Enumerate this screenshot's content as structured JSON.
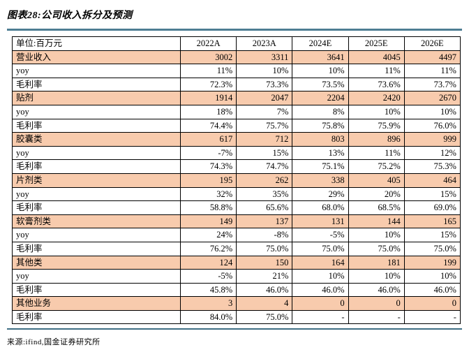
{
  "page": {
    "title": "图表28:公司收入拆分及预测",
    "source": "来源:ifind,国金证券研究所"
  },
  "table": {
    "unit_label": "单位:百万元",
    "columns": [
      "2022A",
      "2023A",
      "2024E",
      "2025E",
      "2026E"
    ],
    "rows": [
      {
        "label": "营业收入",
        "highlight": true,
        "values": [
          "3002",
          "3311",
          "3641",
          "4045",
          "4497"
        ]
      },
      {
        "label": "yoy",
        "highlight": false,
        "values": [
          "11%",
          "10%",
          "10%",
          "11%",
          "11%"
        ]
      },
      {
        "label": "毛利率",
        "highlight": false,
        "values": [
          "72.3%",
          "73.3%",
          "73.5%",
          "73.6%",
          "73.7%"
        ]
      },
      {
        "label": "贴剂",
        "highlight": true,
        "values": [
          "1914",
          "2047",
          "2204",
          "2420",
          "2670"
        ]
      },
      {
        "label": "yoy",
        "highlight": false,
        "values": [
          "18%",
          "7%",
          "8%",
          "10%",
          "10%"
        ]
      },
      {
        "label": "毛利率",
        "highlight": false,
        "values": [
          "74.4%",
          "75.7%",
          "75.8%",
          "75.9%",
          "76.0%"
        ]
      },
      {
        "label": "胶囊类",
        "highlight": true,
        "values": [
          "617",
          "712",
          "803",
          "896",
          "999"
        ]
      },
      {
        "label": "yoy",
        "highlight": false,
        "values": [
          "-7%",
          "15%",
          "13%",
          "11%",
          "12%"
        ]
      },
      {
        "label": "毛利率",
        "highlight": false,
        "values": [
          "74.3%",
          "74.7%",
          "75.1%",
          "75.2%",
          "75.3%"
        ]
      },
      {
        "label": "片剂类",
        "highlight": true,
        "values": [
          "195",
          "262",
          "338",
          "405",
          "464"
        ]
      },
      {
        "label": "yoy",
        "highlight": false,
        "values": [
          "32%",
          "35%",
          "29%",
          "20%",
          "15%"
        ]
      },
      {
        "label": "毛利率",
        "highlight": false,
        "values": [
          "58.8%",
          "65.6%",
          "68.0%",
          "68.5%",
          "69.0%"
        ]
      },
      {
        "label": "软膏剂类",
        "highlight": true,
        "values": [
          "149",
          "137",
          "131",
          "144",
          "165"
        ]
      },
      {
        "label": "yoy",
        "highlight": false,
        "values": [
          "24%",
          "-8%",
          "-5%",
          "10%",
          "15%"
        ]
      },
      {
        "label": "毛利率",
        "highlight": false,
        "values": [
          "76.2%",
          "75.0%",
          "75.0%",
          "75.0%",
          "75.0%"
        ]
      },
      {
        "label": "其他类",
        "highlight": true,
        "values": [
          "124",
          "150",
          "164",
          "181",
          "199"
        ]
      },
      {
        "label": "yoy",
        "highlight": false,
        "values": [
          "-5%",
          "21%",
          "10%",
          "10%",
          "10%"
        ]
      },
      {
        "label": "毛利率",
        "highlight": false,
        "values": [
          "45.8%",
          "46.0%",
          "46.0%",
          "46.0%",
          "46.0%"
        ]
      },
      {
        "label": "其他业务",
        "highlight": true,
        "values": [
          "3",
          "4",
          "0",
          "0",
          "0"
        ]
      },
      {
        "label": "毛利率",
        "highlight": false,
        "values": [
          "84.0%",
          "75.0%",
          "-",
          "-",
          "-"
        ]
      }
    ]
  },
  "colors": {
    "highlight": "#F8CBAD",
    "rule_top": "#4E7E93",
    "rule_bottom": "#3F6E84",
    "border": "#000000"
  }
}
